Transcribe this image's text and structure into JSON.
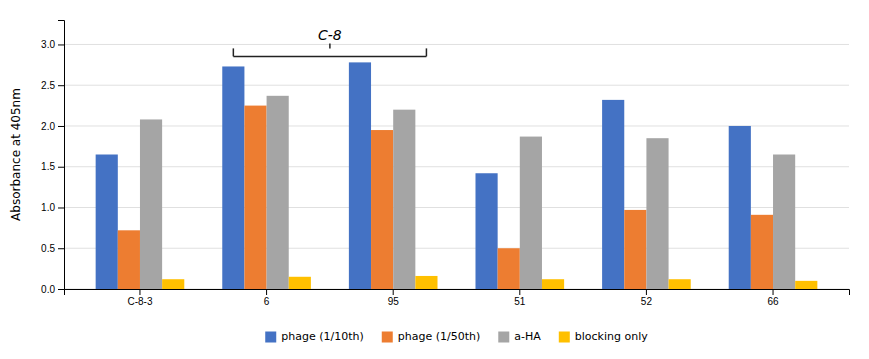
{
  "chart_data": {
    "type": "bar",
    "categories": [
      "C-8-3",
      "6",
      "95",
      "51",
      "52",
      "66"
    ],
    "series": [
      {
        "name": "phage (1/10th)",
        "color": "#4472C4",
        "values": [
          1.65,
          2.73,
          2.78,
          1.42,
          2.32,
          2.0
        ]
      },
      {
        "name": "phage (1/50th)",
        "color": "#ED7D31",
        "values": [
          0.72,
          2.25,
          1.95,
          0.5,
          0.97,
          0.91
        ]
      },
      {
        "name": "a-HA",
        "color": "#A5A5A5",
        "values": [
          2.08,
          2.37,
          2.2,
          1.87,
          1.85,
          1.65
        ]
      },
      {
        "name": "blocking only",
        "color": "#FFC000",
        "values": [
          0.12,
          0.15,
          0.16,
          0.12,
          0.12,
          0.1
        ]
      }
    ],
    "ylabel": "Absorbance at 405nm",
    "ylim": [
      0,
      3.3
    ],
    "yticks": [
      {
        "value": 0,
        "label": "0.0"
      },
      0.5,
      {
        "value": 1,
        "label": "1.0"
      },
      1.5,
      {
        "value": 2,
        "label": "2.0"
      },
      2.5,
      {
        "value": 3,
        "label": "3.0"
      }
    ],
    "annotations": [
      {
        "text": "C-8",
        "categories": [
          "6",
          "95"
        ]
      }
    ],
    "grid": true,
    "legend": "bottom"
  }
}
